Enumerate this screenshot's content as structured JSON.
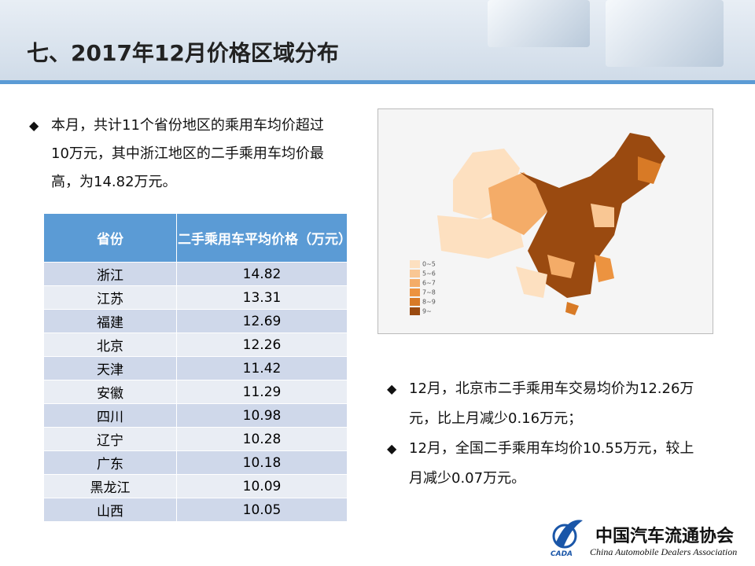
{
  "header": {
    "title": "七、2017年12月价格区域分布"
  },
  "left_bullet": "本月，共计11个省份地区的乘用车均价超过10万元，其中浙江地区的二手乘用车均价最高，为14.82万元。",
  "table": {
    "columns": [
      "省份",
      "二手乘用车平均价格（万元）"
    ],
    "rows": [
      [
        "浙江",
        "14.82"
      ],
      [
        "江苏",
        "13.31"
      ],
      [
        "福建",
        "12.69"
      ],
      [
        "北京",
        "12.26"
      ],
      [
        "天津",
        "11.42"
      ],
      [
        "安徽",
        "11.29"
      ],
      [
        "四川",
        "10.98"
      ],
      [
        "辽宁",
        "10.28"
      ],
      [
        "广东",
        "10.18"
      ],
      [
        "黑龙江",
        "10.09"
      ],
      [
        "山西",
        "10.05"
      ]
    ]
  },
  "map": {
    "legend": [
      {
        "label": "0~5",
        "color": "#fde0c0"
      },
      {
        "label": "5~6",
        "color": "#f9c794"
      },
      {
        "label": "6~7",
        "color": "#f4ac68"
      },
      {
        "label": "7~8",
        "color": "#ec9340"
      },
      {
        "label": "8~9",
        "color": "#d87a26"
      },
      {
        "label": "9~",
        "color": "#9a4a10"
      }
    ]
  },
  "right_bullets": [
    "12月，北京市二手乘用车交易均价为12.26万元，比上月减少0.16万元；",
    "12月，全国二手乘用车均价10.55万元，较上月减少0.07万元。"
  ],
  "logo": {
    "name": "中国汽车流通协会",
    "english": "China Automobile Dealers Association",
    "abbr": "CADA"
  }
}
